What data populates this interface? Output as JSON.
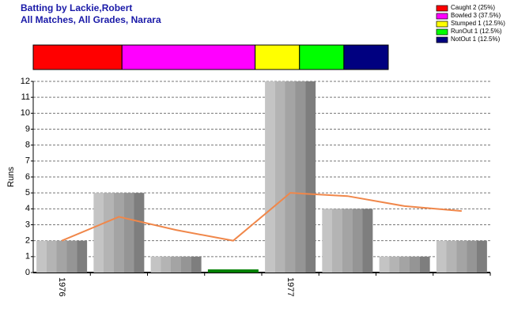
{
  "chart_data": {
    "type": "bar",
    "title": "Batting by Lackie,Robert",
    "subtitle": "All Matches, All Grades, Narara",
    "y_label": "Runs",
    "categories": [
      "1976",
      null,
      null,
      null,
      "1977",
      null,
      null,
      null
    ],
    "values": [
      2,
      5,
      1,
      0,
      12,
      4,
      1,
      2
    ],
    "bar_colors": [
      "grey",
      "grey",
      "grey",
      "#008000",
      "grey",
      "grey",
      "grey",
      "grey"
    ],
    "line": {
      "values": [
        2,
        3.5,
        2.67,
        2,
        5,
        4.8,
        4.17,
        3.86
      ],
      "color": "#f0874a"
    },
    "ylim": [
      0,
      12
    ],
    "yticks": [
      0,
      1,
      2,
      3,
      4,
      5,
      6,
      7,
      8,
      9,
      10,
      11,
      12
    ],
    "grid": true,
    "breakdown": {
      "labels": [
        "Caught 2 (25%)",
        "Bowled 3 (37.5%)",
        "Stumped 1 (12.5%)",
        "RunOut 1 (12.5%)",
        "NotOut 1 (12.5%)"
      ],
      "values": [
        2,
        3,
        1,
        1,
        1
      ],
      "colors": [
        "#ff0000",
        "#ff00ff",
        "#ffff00",
        "#00ff00",
        "#000080"
      ]
    }
  }
}
